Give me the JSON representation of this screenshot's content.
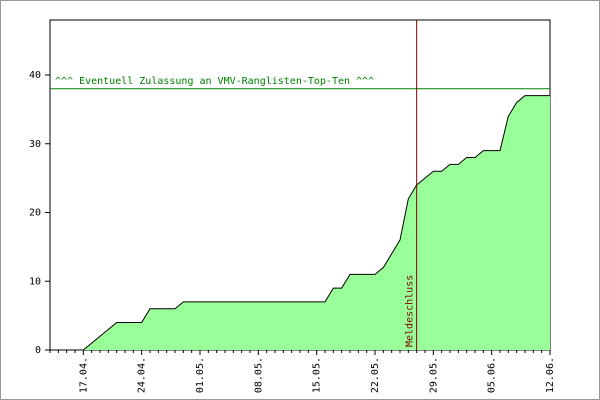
{
  "chart_data": {
    "type": "area",
    "categories": [
      null,
      null,
      null,
      null,
      "17.04.",
      null,
      null,
      null,
      null,
      null,
      null,
      "24.04.",
      null,
      null,
      null,
      null,
      null,
      null,
      "01.05.",
      null,
      null,
      null,
      null,
      null,
      null,
      "08.05.",
      null,
      null,
      null,
      null,
      null,
      null,
      "15.05.",
      null,
      null,
      null,
      null,
      null,
      null,
      "22.05.",
      null,
      null,
      null,
      null,
      null,
      null,
      "29.05.",
      null,
      null,
      null,
      null,
      null,
      null,
      "05.06.",
      null,
      null,
      null,
      null,
      null,
      null,
      "12.06."
    ],
    "values": [
      0,
      0,
      0,
      0,
      0,
      1,
      2,
      3,
      4,
      4,
      4,
      4,
      6,
      6,
      6,
      6,
      7,
      7,
      7,
      7,
      7,
      7,
      7,
      7,
      7,
      7,
      7,
      7,
      7,
      7,
      7,
      7,
      7,
      7,
      9,
      9,
      11,
      11,
      11,
      11,
      12,
      14,
      16,
      22,
      24,
      25,
      26,
      26,
      27,
      27,
      28,
      28,
      29,
      29,
      29,
      34,
      36,
      37,
      37,
      37,
      37
    ],
    "color": "#99ff99",
    "line_color": "#000000",
    "ylim": [
      0,
      48
    ],
    "yticks": [
      0,
      10,
      20,
      30,
      40
    ],
    "reference_line": {
      "value": 38,
      "label": "^^^ Eventuell Zulassung an VMV-Ranglisten-Top-Ten ^^^",
      "color": "#008000"
    },
    "marker": {
      "category_index": 44,
      "label": "Meldeschluss",
      "color": "#800000"
    }
  }
}
